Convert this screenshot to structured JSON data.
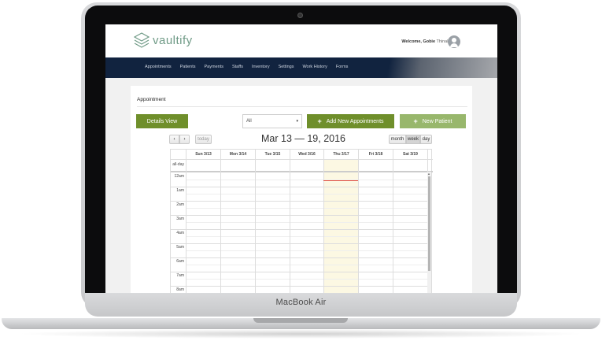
{
  "device": {
    "label": "MacBook Air"
  },
  "header": {
    "logo_text": "vaultify",
    "welcome_prefix": "Welcome,",
    "user_first": "Gobie",
    "user_last": "Thinakaran"
  },
  "nav": {
    "items": [
      "Appointments",
      "Patients",
      "Payments",
      "Staffs",
      "Inventory",
      "Settings",
      "Work History",
      "Forms"
    ]
  },
  "page": {
    "section_title": "Appointment",
    "details_view": "Details View",
    "filter_value": "All",
    "add_appointments": "Add New Appointments",
    "new_patient": "New Patient"
  },
  "calendar": {
    "title": "Mar 13 — 19, 2016",
    "prev_icon": "‹",
    "next_icon": "›",
    "today": "today",
    "views": {
      "month": "month",
      "week": "week",
      "day": "day"
    },
    "active_view": "week",
    "columns": [
      "Sun 3/13",
      "Mon 3/14",
      "Tue 3/15",
      "Wed 3/16",
      "Thu 3/17",
      "Fri 3/18",
      "Sat 3/19"
    ],
    "highlighted_column": "Thu 3/17",
    "all_day_label": "all-day",
    "time_labels": [
      "12am",
      "1am",
      "2am",
      "3am",
      "4am",
      "5am",
      "6am",
      "7am",
      "8am"
    ],
    "colors": {
      "today_bg": "#fcf8e3",
      "now_indicator": "#e24b3b"
    }
  },
  "colors": {
    "navbar": "#11233f",
    "primary_button": "#6f8f2b",
    "secondary_button": "#98b76c",
    "logo": "#6f9a86"
  }
}
